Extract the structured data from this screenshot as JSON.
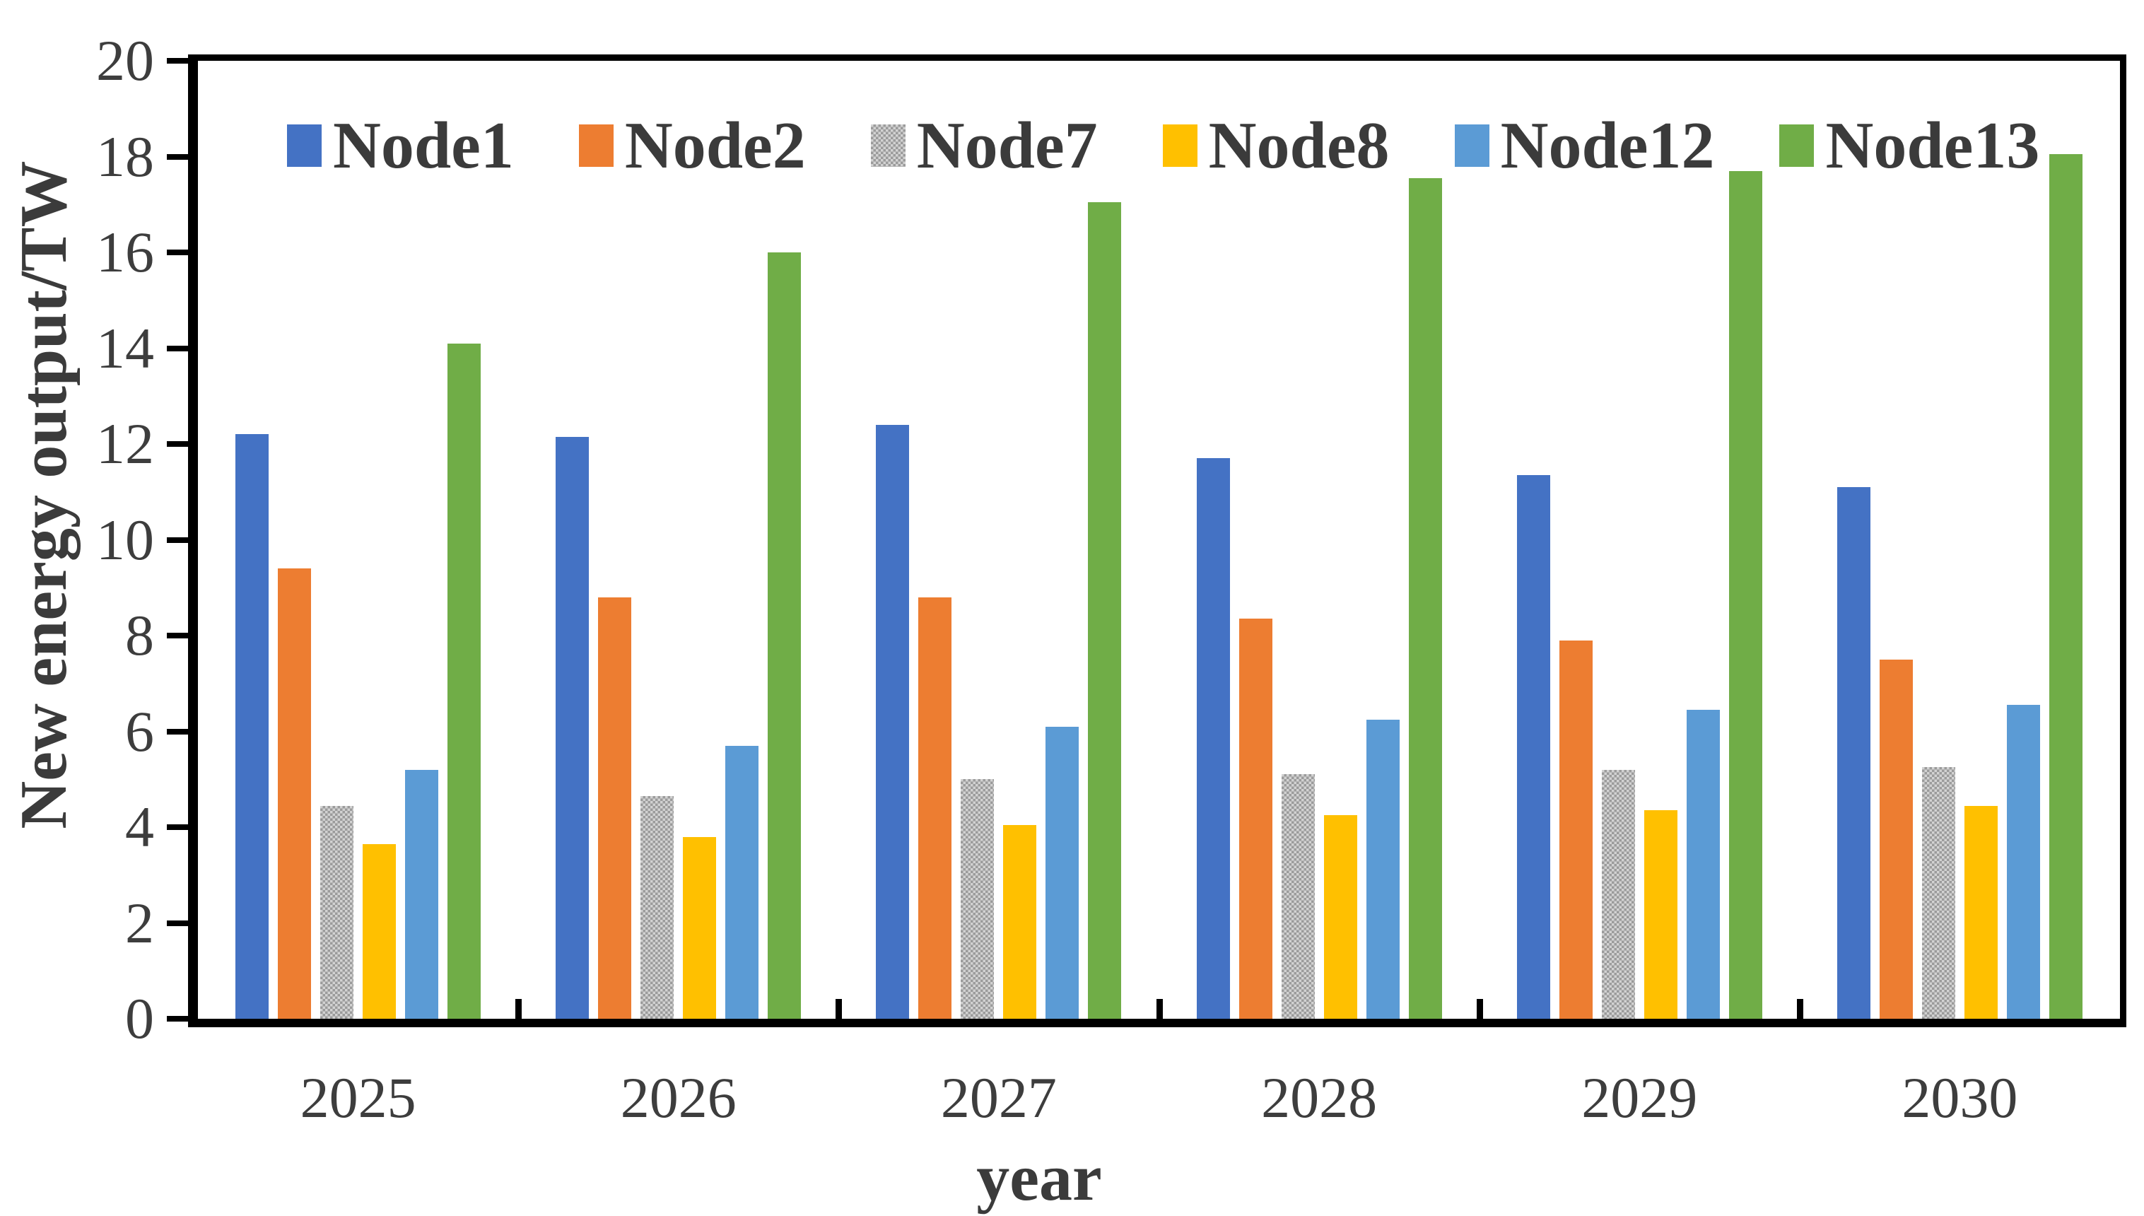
{
  "chart_data": {
    "type": "bar",
    "title": "",
    "xlabel": "year",
    "ylabel": "New energy output/TW",
    "ylim": [
      0,
      20
    ],
    "yticks": [
      0,
      2,
      4,
      6,
      8,
      10,
      12,
      14,
      16,
      18,
      20
    ],
    "grid": false,
    "legend_position": "top-inside",
    "categories": [
      "2025",
      "2026",
      "2027",
      "2028",
      "2029",
      "2030"
    ],
    "series": [
      {
        "name": "Node1",
        "color": "#4472C4",
        "pattern": "solid",
        "values": [
          12.2,
          12.15,
          12.4,
          11.7,
          11.35,
          11.1
        ]
      },
      {
        "name": "Node2",
        "color": "#ED7D31",
        "pattern": "solid",
        "values": [
          9.4,
          8.8,
          8.8,
          8.35,
          7.9,
          7.5
        ]
      },
      {
        "name": "Node7",
        "color": "#A6A6A6",
        "pattern": "checker",
        "values": [
          4.45,
          4.65,
          5.0,
          5.1,
          5.2,
          5.25
        ]
      },
      {
        "name": "Node8",
        "color": "#FFC000",
        "pattern": "solid",
        "values": [
          3.65,
          3.8,
          4.05,
          4.25,
          4.35,
          4.45
        ]
      },
      {
        "name": "Node12",
        "color": "#5B9BD5",
        "pattern": "solid",
        "values": [
          5.2,
          5.7,
          6.1,
          6.25,
          6.45,
          6.55
        ]
      },
      {
        "name": "Node13",
        "color": "#70AD47",
        "pattern": "solid",
        "values": [
          14.1,
          16.0,
          17.05,
          17.55,
          17.7,
          18.05
        ]
      }
    ],
    "colors": {
      "axis_line": "#000000",
      "text": "#3b3b3b",
      "tick_text": "#3d3d3d",
      "background": "#ffffff"
    }
  }
}
